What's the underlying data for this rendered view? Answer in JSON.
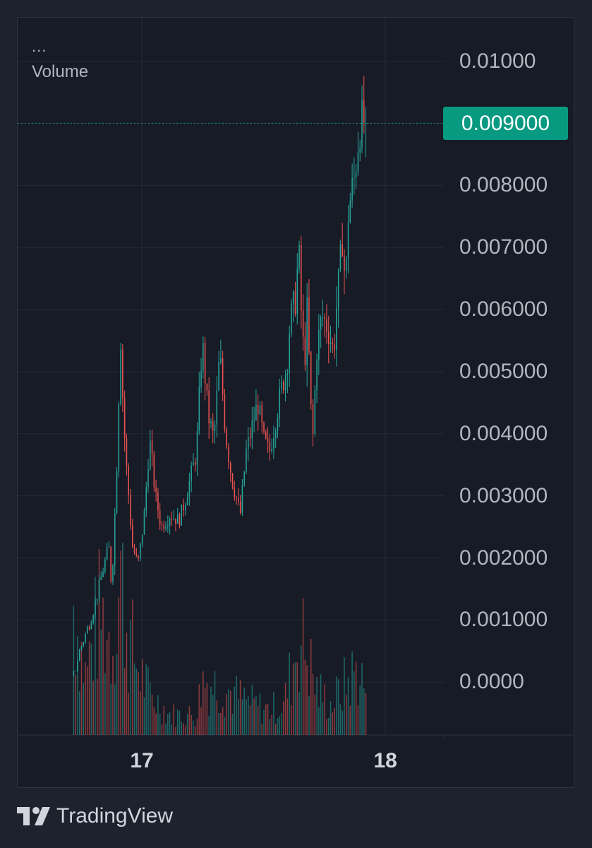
{
  "legend": {
    "ellipsis": "...",
    "volume_label": "Volume"
  },
  "price_badge": "0.009000",
  "brand": {
    "name": "TradingView"
  },
  "colors": {
    "background": "#171b26",
    "grid": "#272b37",
    "up": "#26a69a",
    "down": "#ef5350",
    "badge": "#089981",
    "text": "#b2b5be"
  },
  "chart_data": {
    "type": "candlestick",
    "grid": true,
    "y_axis": {
      "position": "right",
      "ticks": [
        {
          "value": 0.01,
          "label": "0.01000"
        },
        {
          "value": 0.009,
          "label": "0.009000"
        },
        {
          "value": 0.008,
          "label": "0.008000"
        },
        {
          "value": 0.007,
          "label": "0.007000"
        },
        {
          "value": 0.006,
          "label": "0.006000"
        },
        {
          "value": 0.005,
          "label": "0.005000"
        },
        {
          "value": 0.004,
          "label": "0.004000"
        },
        {
          "value": 0.003,
          "label": "0.003000"
        },
        {
          "value": 0.002,
          "label": "0.002000"
        },
        {
          "value": 0.001,
          "label": "0.001000"
        },
        {
          "value": 0,
          "label": "0.0000"
        }
      ],
      "range": [
        -0.00085,
        0.0107
      ]
    },
    "x_axis": {
      "ticks": [
        {
          "value": 17,
          "label": "17"
        },
        {
          "value": 18,
          "label": "18"
        }
      ],
      "range": [
        16.49,
        18.24
      ]
    },
    "last_price": 0.009,
    "series_start": 16.72,
    "series_end": 17.92,
    "close_path": [
      [
        0,
        0.0001
      ],
      [
        0.02,
        0.0005
      ],
      [
        0.05,
        0.0009
      ],
      [
        0.07,
        0.0012
      ],
      [
        0.1,
        0.0018
      ],
      [
        0.12,
        0.0022
      ],
      [
        0.13,
        0.0015
      ],
      [
        0.14,
        0.0026
      ],
      [
        0.15,
        0.0038
      ],
      [
        0.16,
        0.0057
      ],
      [
        0.17,
        0.0043
      ],
      [
        0.18,
        0.0035
      ],
      [
        0.19,
        0.0029
      ],
      [
        0.2,
        0.0022
      ],
      [
        0.22,
        0.0019
      ],
      [
        0.24,
        0.0026
      ],
      [
        0.26,
        0.0039
      ],
      [
        0.28,
        0.003
      ],
      [
        0.3,
        0.0025
      ],
      [
        0.33,
        0.0027
      ],
      [
        0.36,
        0.0026
      ],
      [
        0.38,
        0.0029
      ],
      [
        0.4,
        0.0033
      ],
      [
        0.42,
        0.0037
      ],
      [
        0.44,
        0.0055
      ],
      [
        0.46,
        0.0043
      ],
      [
        0.48,
        0.0039
      ],
      [
        0.5,
        0.0053
      ],
      [
        0.52,
        0.004
      ],
      [
        0.54,
        0.0033
      ],
      [
        0.56,
        0.0029
      ],
      [
        0.57,
        0.0027
      ],
      [
        0.59,
        0.0037
      ],
      [
        0.61,
        0.0041
      ],
      [
        0.63,
        0.0045
      ],
      [
        0.65,
        0.0039
      ],
      [
        0.67,
        0.0037
      ],
      [
        0.69,
        0.0042
      ],
      [
        0.71,
        0.0047
      ],
      [
        0.73,
        0.0051
      ],
      [
        0.74,
        0.0058
      ],
      [
        0.76,
        0.0062
      ],
      [
        0.77,
        0.007
      ],
      [
        0.78,
        0.0058
      ],
      [
        0.79,
        0.0051
      ],
      [
        0.8,
        0.0061
      ],
      [
        0.81,
        0.0045
      ],
      [
        0.82,
        0.0039
      ],
      [
        0.83,
        0.0053
      ],
      [
        0.85,
        0.0059
      ],
      [
        0.87,
        0.0057
      ],
      [
        0.89,
        0.0053
      ],
      [
        0.9,
        0.0061
      ],
      [
        0.91,
        0.0066
      ],
      [
        0.92,
        0.0072
      ],
      [
        0.93,
        0.0063
      ],
      [
        0.94,
        0.0076
      ],
      [
        0.96,
        0.0081
      ],
      [
        0.97,
        0.0086
      ],
      [
        0.98,
        0.009
      ],
      [
        1,
        0.009
      ]
    ],
    "volume_peaks": [
      [
        0,
        0.26
      ],
      [
        0.04,
        0.12
      ],
      [
        0.09,
        0.24
      ],
      [
        0.13,
        0.18
      ],
      [
        0.15,
        0.25
      ],
      [
        0.16,
        0.33
      ],
      [
        0.18,
        0.22
      ],
      [
        0.21,
        0.15
      ],
      [
        0.26,
        0.08
      ],
      [
        0.33,
        0.04
      ],
      [
        0.42,
        0.04
      ],
      [
        0.44,
        0.11
      ],
      [
        0.52,
        0.09
      ],
      [
        0.58,
        0.07
      ],
      [
        0.66,
        0.05
      ],
      [
        0.72,
        0.06
      ],
      [
        0.75,
        0.14
      ],
      [
        0.77,
        0.2
      ],
      [
        0.8,
        0.16
      ],
      [
        0.83,
        0.09
      ],
      [
        0.88,
        0.06
      ],
      [
        0.93,
        0.1
      ],
      [
        0.97,
        0.13
      ],
      [
        1,
        0.09
      ]
    ],
    "volume_max_fraction_of_pane": 0.18
  }
}
